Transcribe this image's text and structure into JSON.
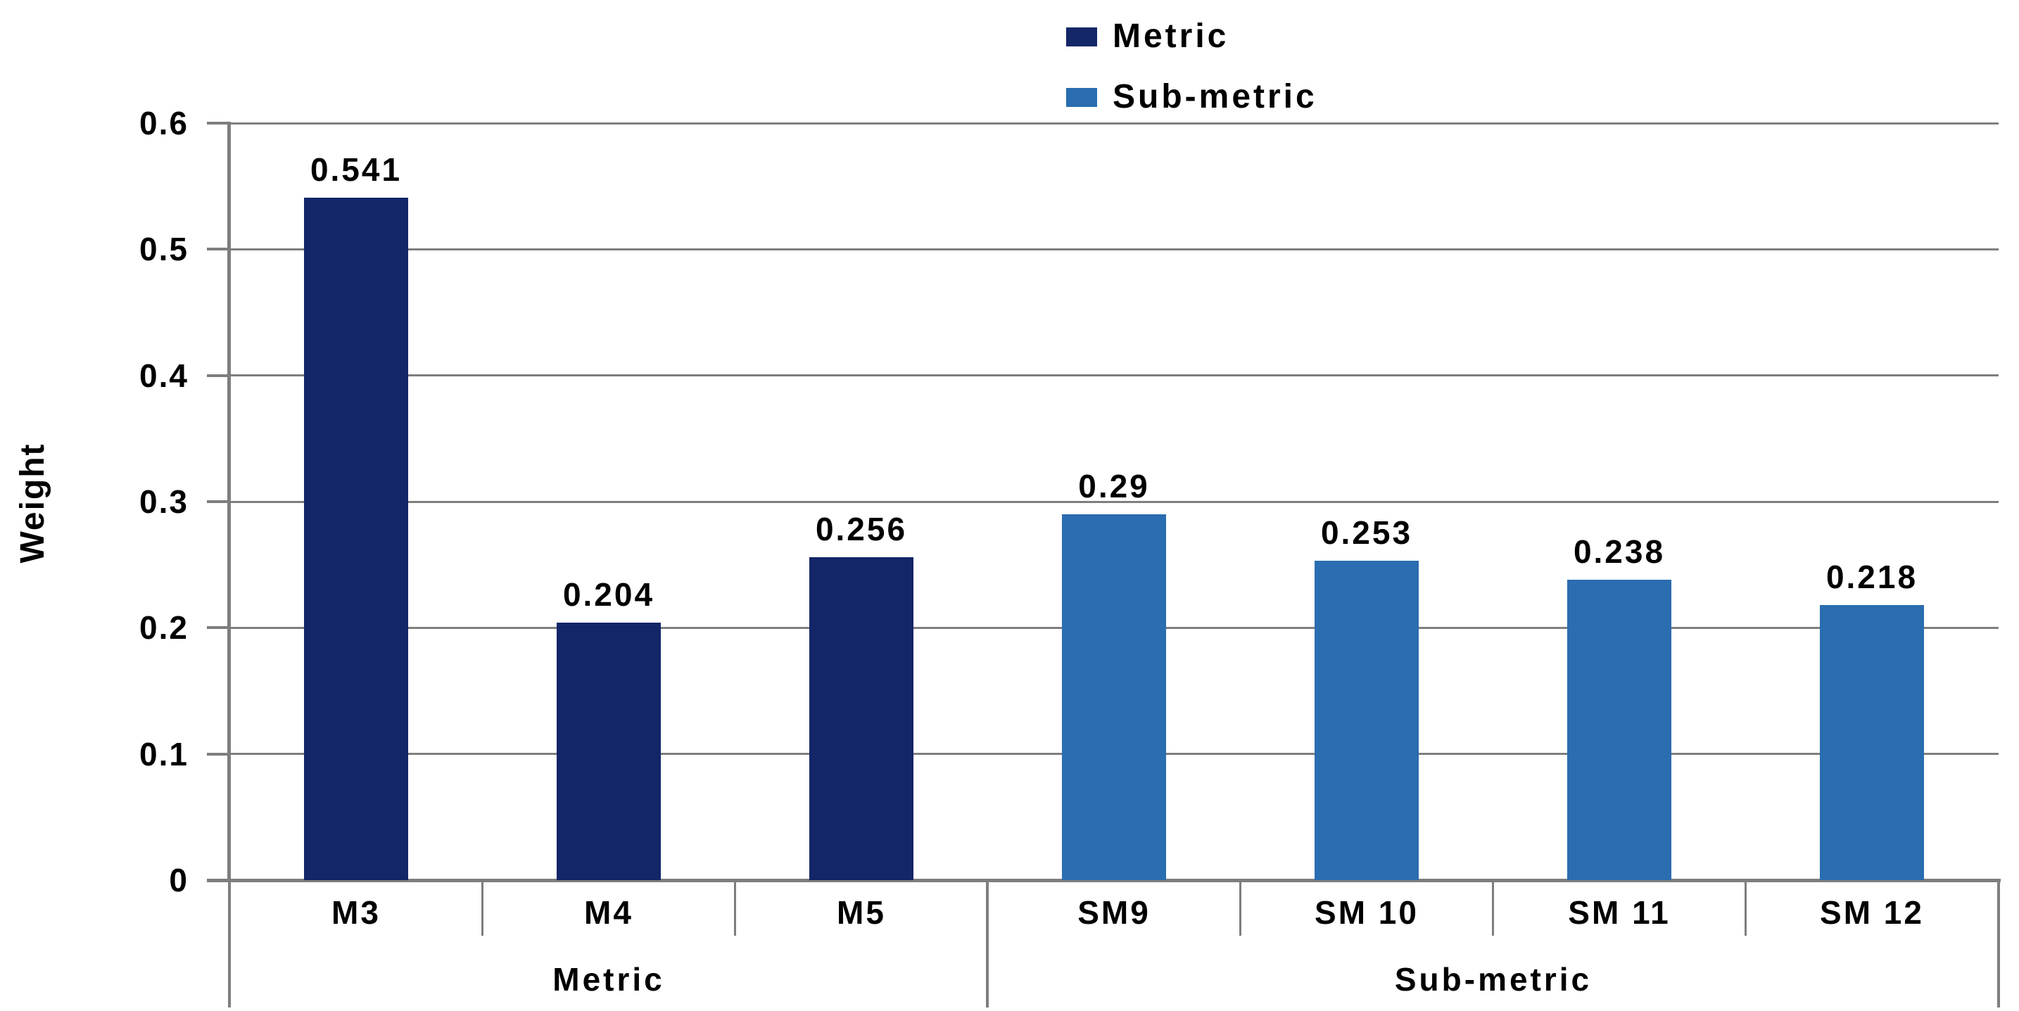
{
  "chart_data": {
    "type": "bar",
    "title": "",
    "xlabel": "",
    "ylabel": "Weight",
    "ylim": [
      0,
      0.6
    ],
    "yticks": [
      0,
      0.1,
      0.2,
      0.3,
      0.4,
      0.5,
      0.6
    ],
    "ytick_labels": [
      "0",
      "0.1",
      "0.2",
      "0.3",
      "0.4",
      "0.5",
      "0.6"
    ],
    "grid": "horizontal-only",
    "legend_position": "top-center",
    "categories": [
      "M3",
      "M4",
      "M5",
      "SM9",
      "SM 10",
      "SM 11",
      "SM 12"
    ],
    "series": [
      {
        "name": "Metric",
        "color": "#122668",
        "categories": [
          "M3",
          "M4",
          "M5"
        ],
        "values": [
          0.541,
          0.204,
          0.256
        ]
      },
      {
        "name": "Sub-metric",
        "color": "#2A6DB0",
        "categories": [
          "SM9",
          "SM 10",
          "SM 11",
          "SM 12"
        ],
        "values": [
          0.29,
          0.253,
          0.238,
          0.218
        ]
      }
    ],
    "bars": [
      {
        "category": "M3",
        "group": "Metric",
        "value": 0.541,
        "label": "0.541"
      },
      {
        "category": "M4",
        "group": "Metric",
        "value": 0.204,
        "label": "0.204"
      },
      {
        "category": "M5",
        "group": "Metric",
        "value": 0.256,
        "label": "0.256"
      },
      {
        "category": "SM9",
        "group": "Sub-metric",
        "value": 0.29,
        "label": "0.29"
      },
      {
        "category": "SM 10",
        "group": "Sub-metric",
        "value": 0.253,
        "label": "0.253"
      },
      {
        "category": "SM 11",
        "group": "Sub-metric",
        "value": 0.238,
        "label": "0.238"
      },
      {
        "category": "SM 12",
        "group": "Sub-metric",
        "value": 0.218,
        "label": "0.218"
      }
    ],
    "group_labels": [
      "Metric",
      "Sub-metric"
    ]
  },
  "legend": {
    "items": [
      {
        "label": "Metric",
        "color": "#122668"
      },
      {
        "label": "Sub-metric",
        "color": "#2A6DB0"
      }
    ]
  },
  "colors": {
    "background": "#FFFFFF",
    "grid": "#7E7E7E",
    "axis": "#7E7E7E",
    "text": "#000000",
    "series_metric": "#122668",
    "series_submetric": "#2A6DB0"
  }
}
